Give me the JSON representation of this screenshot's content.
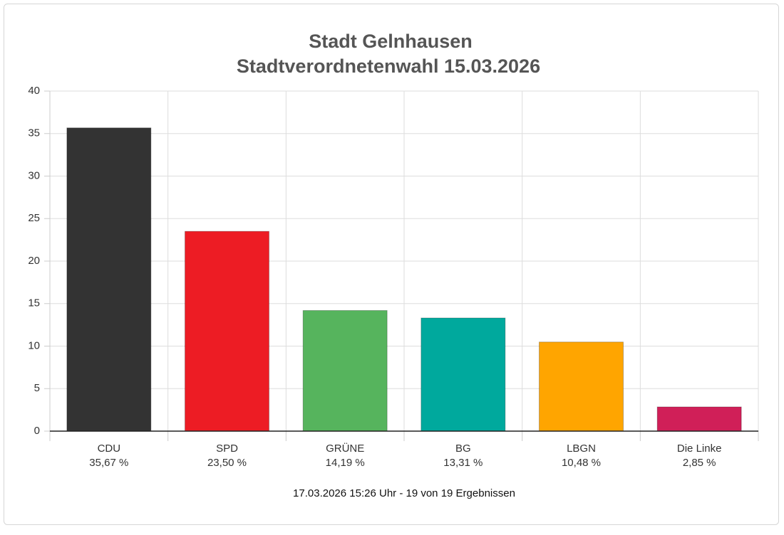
{
  "chart_data": {
    "type": "bar",
    "title": "Stadt Gelnhausen",
    "subtitle": "Stadtverordnetenwahl 15.03.2026",
    "categories": [
      "CDU",
      "SPD",
      "GRÜNE",
      "BG",
      "LBGN",
      "Die Linke"
    ],
    "values": [
      35.67,
      23.5,
      14.19,
      13.31,
      10.48,
      2.85
    ],
    "value_labels": [
      "35,67 %",
      "23,50 %",
      "14,19 %",
      "13,31 %",
      "10,48 %",
      "2,85 %"
    ],
    "colors": [
      "#333333",
      "#ed1c24",
      "#56b45d",
      "#00a99d",
      "#ffa500",
      "#d01f58"
    ],
    "ylim": [
      0,
      40
    ],
    "yticks": [
      0,
      5,
      10,
      15,
      20,
      25,
      30,
      35,
      40
    ],
    "grid": true,
    "footer": "17.03.2026 15:26 Uhr - 19 von 19 Ergebnissen"
  }
}
